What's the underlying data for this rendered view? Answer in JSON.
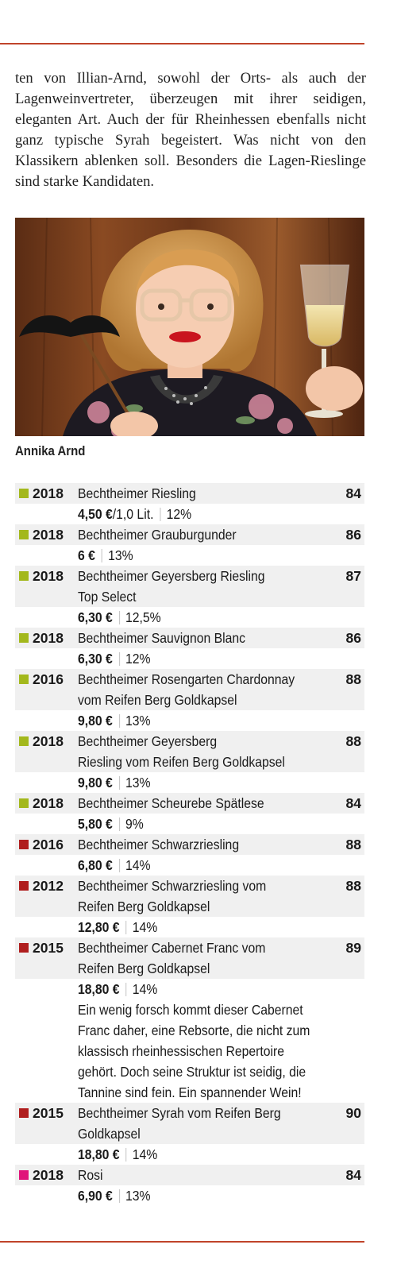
{
  "intro_text": "ten von Illian-Arnd, sowohl der Orts- als auch der Lagenweinvertreter, überzeugen mit ihrer seidigen, eleganten Art. Auch der für Rheinhessen ebenfalls nicht ganz typische Syrah begeistert. Was nicht von den Klassikern ablenken soll. Besonders die Lagen-Rieslinge sind starke Kandidaten.",
  "photo_caption": "Annika Arnd",
  "colors": {
    "accent_rule": "#c0442a",
    "white_wine": "#a3b81c",
    "red_wine": "#b01e1e",
    "rose_wine": "#e0147a"
  },
  "wines": [
    {
      "year": "2018",
      "type": "white",
      "name_lines": [
        "Bechtheimer Riesling"
      ],
      "score": "84",
      "price": "4,50 €",
      "volume": "/1,0 Lit.",
      "alcohol": "12%"
    },
    {
      "year": "2018",
      "type": "white",
      "name_lines": [
        "Bechtheimer Grauburgunder"
      ],
      "score": "86",
      "price": "6 €",
      "alcohol": "13%"
    },
    {
      "year": "2018",
      "type": "white",
      "name_lines": [
        "Bechtheimer Geyersberg Riesling",
        "Top Select"
      ],
      "score": "87",
      "price": "6,30 €",
      "alcohol": "12,5%"
    },
    {
      "year": "2018",
      "type": "white",
      "name_lines": [
        "Bechtheimer Sauvignon Blanc"
      ],
      "score": "86",
      "price": "6,30 €",
      "alcohol": "12%"
    },
    {
      "year": "2016",
      "type": "white",
      "name_lines": [
        "Bechtheimer Rosengarten Chardonnay",
        "vom Reifen Berg Goldkapsel"
      ],
      "score": "88",
      "price": "9,80 €",
      "alcohol": "13%"
    },
    {
      "year": "2018",
      "type": "white",
      "name_lines": [
        "Bechtheimer Geyersberg",
        "Riesling vom Reifen Berg Goldkapsel"
      ],
      "score": "88",
      "price": "9,80 €",
      "alcohol": "13%"
    },
    {
      "year": "2018",
      "type": "white",
      "name_lines": [
        "Bechtheimer Scheurebe Spätlese"
      ],
      "score": "84",
      "price": "5,80 €",
      "alcohol": "9%"
    },
    {
      "year": "2016",
      "type": "red",
      "name_lines": [
        "Bechtheimer Schwarzriesling"
      ],
      "score": "88",
      "price": "6,80 €",
      "alcohol": "14%"
    },
    {
      "year": "2012",
      "type": "red",
      "name_lines": [
        "Bechtheimer Schwarzriesling vom",
        "Reifen Berg Goldkapsel"
      ],
      "score": "88",
      "price": "12,80 €",
      "alcohol": "14%"
    },
    {
      "year": "2015",
      "type": "red",
      "name_lines": [
        "Bechtheimer Cabernet Franc vom",
        "Reifen Berg Goldkapsel"
      ],
      "score": "89",
      "price": "18,80 €",
      "alcohol": "14%",
      "description_lines": [
        "Ein wenig forsch kommt dieser Cabernet",
        "Franc daher, eine Rebsorte, die nicht zum",
        "klassisch rheinhessischen Repertoire",
        "gehört. Doch seine Struktur ist seidig, die",
        "Tannine sind fein. Ein spannender Wein!"
      ]
    },
    {
      "year": "2015",
      "type": "red",
      "name_lines": [
        "Bechtheimer Syrah vom Reifen Berg",
        "Goldkapsel"
      ],
      "score": "90",
      "price": "18,80 €",
      "alcohol": "14%"
    },
    {
      "year": "2018",
      "type": "rose",
      "name_lines": [
        "Rosi"
      ],
      "score": "84",
      "price": "6,90 €",
      "alcohol": "13%"
    }
  ]
}
